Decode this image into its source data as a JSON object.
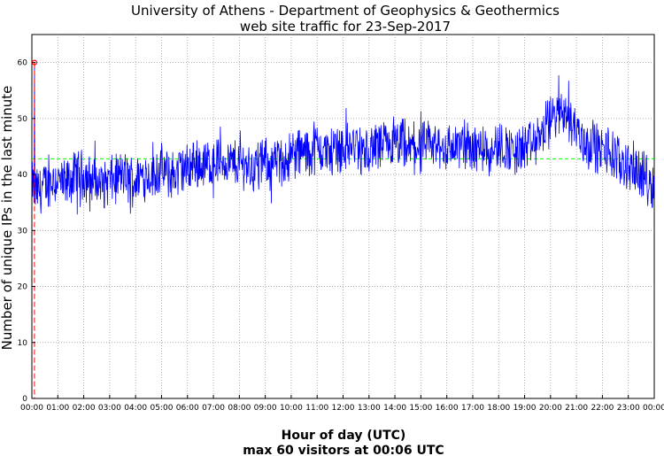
{
  "chart_data": {
    "type": "line",
    "title": "University of Athens - Department of Geophysics & Geothermics",
    "subtitle": "web site traffic for 23-Sep-2017",
    "xlabel": "Hour of day (UTC)",
    "ylabel": "Number of unique IPs in the last minute",
    "footer": "max 60 visitors at 00:06 UTC",
    "xlim": [
      0,
      24
    ],
    "ylim": [
      0,
      65
    ],
    "grid": true,
    "x_tick_labels": [
      "00:00",
      "01:00",
      "02:00",
      "03:00",
      "04:00",
      "05:00",
      "06:00",
      "07:00",
      "08:00",
      "09:00",
      "10:00",
      "11:00",
      "12:00",
      "13:00",
      "14:00",
      "15:00",
      "16:00",
      "17:00",
      "18:00",
      "19:00",
      "20:00",
      "21:00",
      "22:00",
      "23:00",
      "00:00"
    ],
    "y_tick_labels": [
      "0",
      "10",
      "20",
      "30",
      "40",
      "50",
      "60"
    ],
    "y_ticks": [
      0,
      10,
      20,
      30,
      40,
      50,
      60
    ],
    "series": [
      {
        "color": "#0000ff",
        "x_hours": [
          0,
          0.25,
          0.5,
          0.75,
          1,
          1.25,
          1.5,
          1.75,
          2,
          2.25,
          2.5,
          2.75,
          3,
          3.25,
          3.5,
          3.75,
          4,
          4.25,
          4.5,
          4.75,
          5,
          5.25,
          5.5,
          5.75,
          6,
          6.25,
          6.5,
          6.75,
          7,
          7.25,
          7.5,
          7.75,
          8,
          8.25,
          8.5,
          8.75,
          9,
          9.25,
          9.5,
          9.75,
          10,
          10.25,
          10.5,
          10.75,
          11,
          11.25,
          11.5,
          11.75,
          12,
          12.25,
          12.5,
          12.75,
          13,
          13.25,
          13.5,
          13.75,
          14,
          14.25,
          14.5,
          14.75,
          15,
          15.25,
          15.5,
          15.75,
          16,
          16.25,
          16.5,
          16.75,
          17,
          17.25,
          17.5,
          17.75,
          18,
          18.25,
          18.5,
          18.75,
          19,
          19.25,
          19.5,
          19.75,
          20,
          20.25,
          20.5,
          20.75,
          21,
          21.25,
          21.5,
          21.75,
          22,
          22.25,
          22.5,
          22.75,
          23,
          23.25,
          23.5,
          23.75,
          24
        ],
        "values": [
          38,
          37,
          38,
          39,
          39,
          38,
          39,
          40,
          40,
          39,
          39,
          38,
          39,
          39,
          40,
          39,
          39,
          40,
          40,
          40,
          41,
          40,
          40,
          41,
          41,
          42,
          42,
          42,
          42,
          43,
          42,
          42,
          42,
          42,
          41,
          42,
          42,
          42,
          42,
          43,
          43,
          44,
          44,
          44,
          45,
          44,
          44,
          45,
          45,
          45,
          45,
          44,
          44,
          45,
          45,
          45,
          45,
          45,
          44,
          45,
          45,
          45,
          45,
          45,
          45,
          45,
          45,
          45,
          45,
          45,
          45,
          45,
          45,
          45,
          44,
          44,
          45,
          45,
          46,
          48,
          50,
          51,
          52,
          50,
          48,
          46,
          45,
          45,
          44,
          44,
          43,
          42,
          42,
          41,
          40,
          39,
          38
        ]
      }
    ],
    "noise_amplitude": 4,
    "average": {
      "value": 42.8,
      "color": "#00ff00"
    },
    "max_marker": {
      "x_hours": 0.1,
      "value": 60,
      "color": "#ff0000"
    }
  }
}
